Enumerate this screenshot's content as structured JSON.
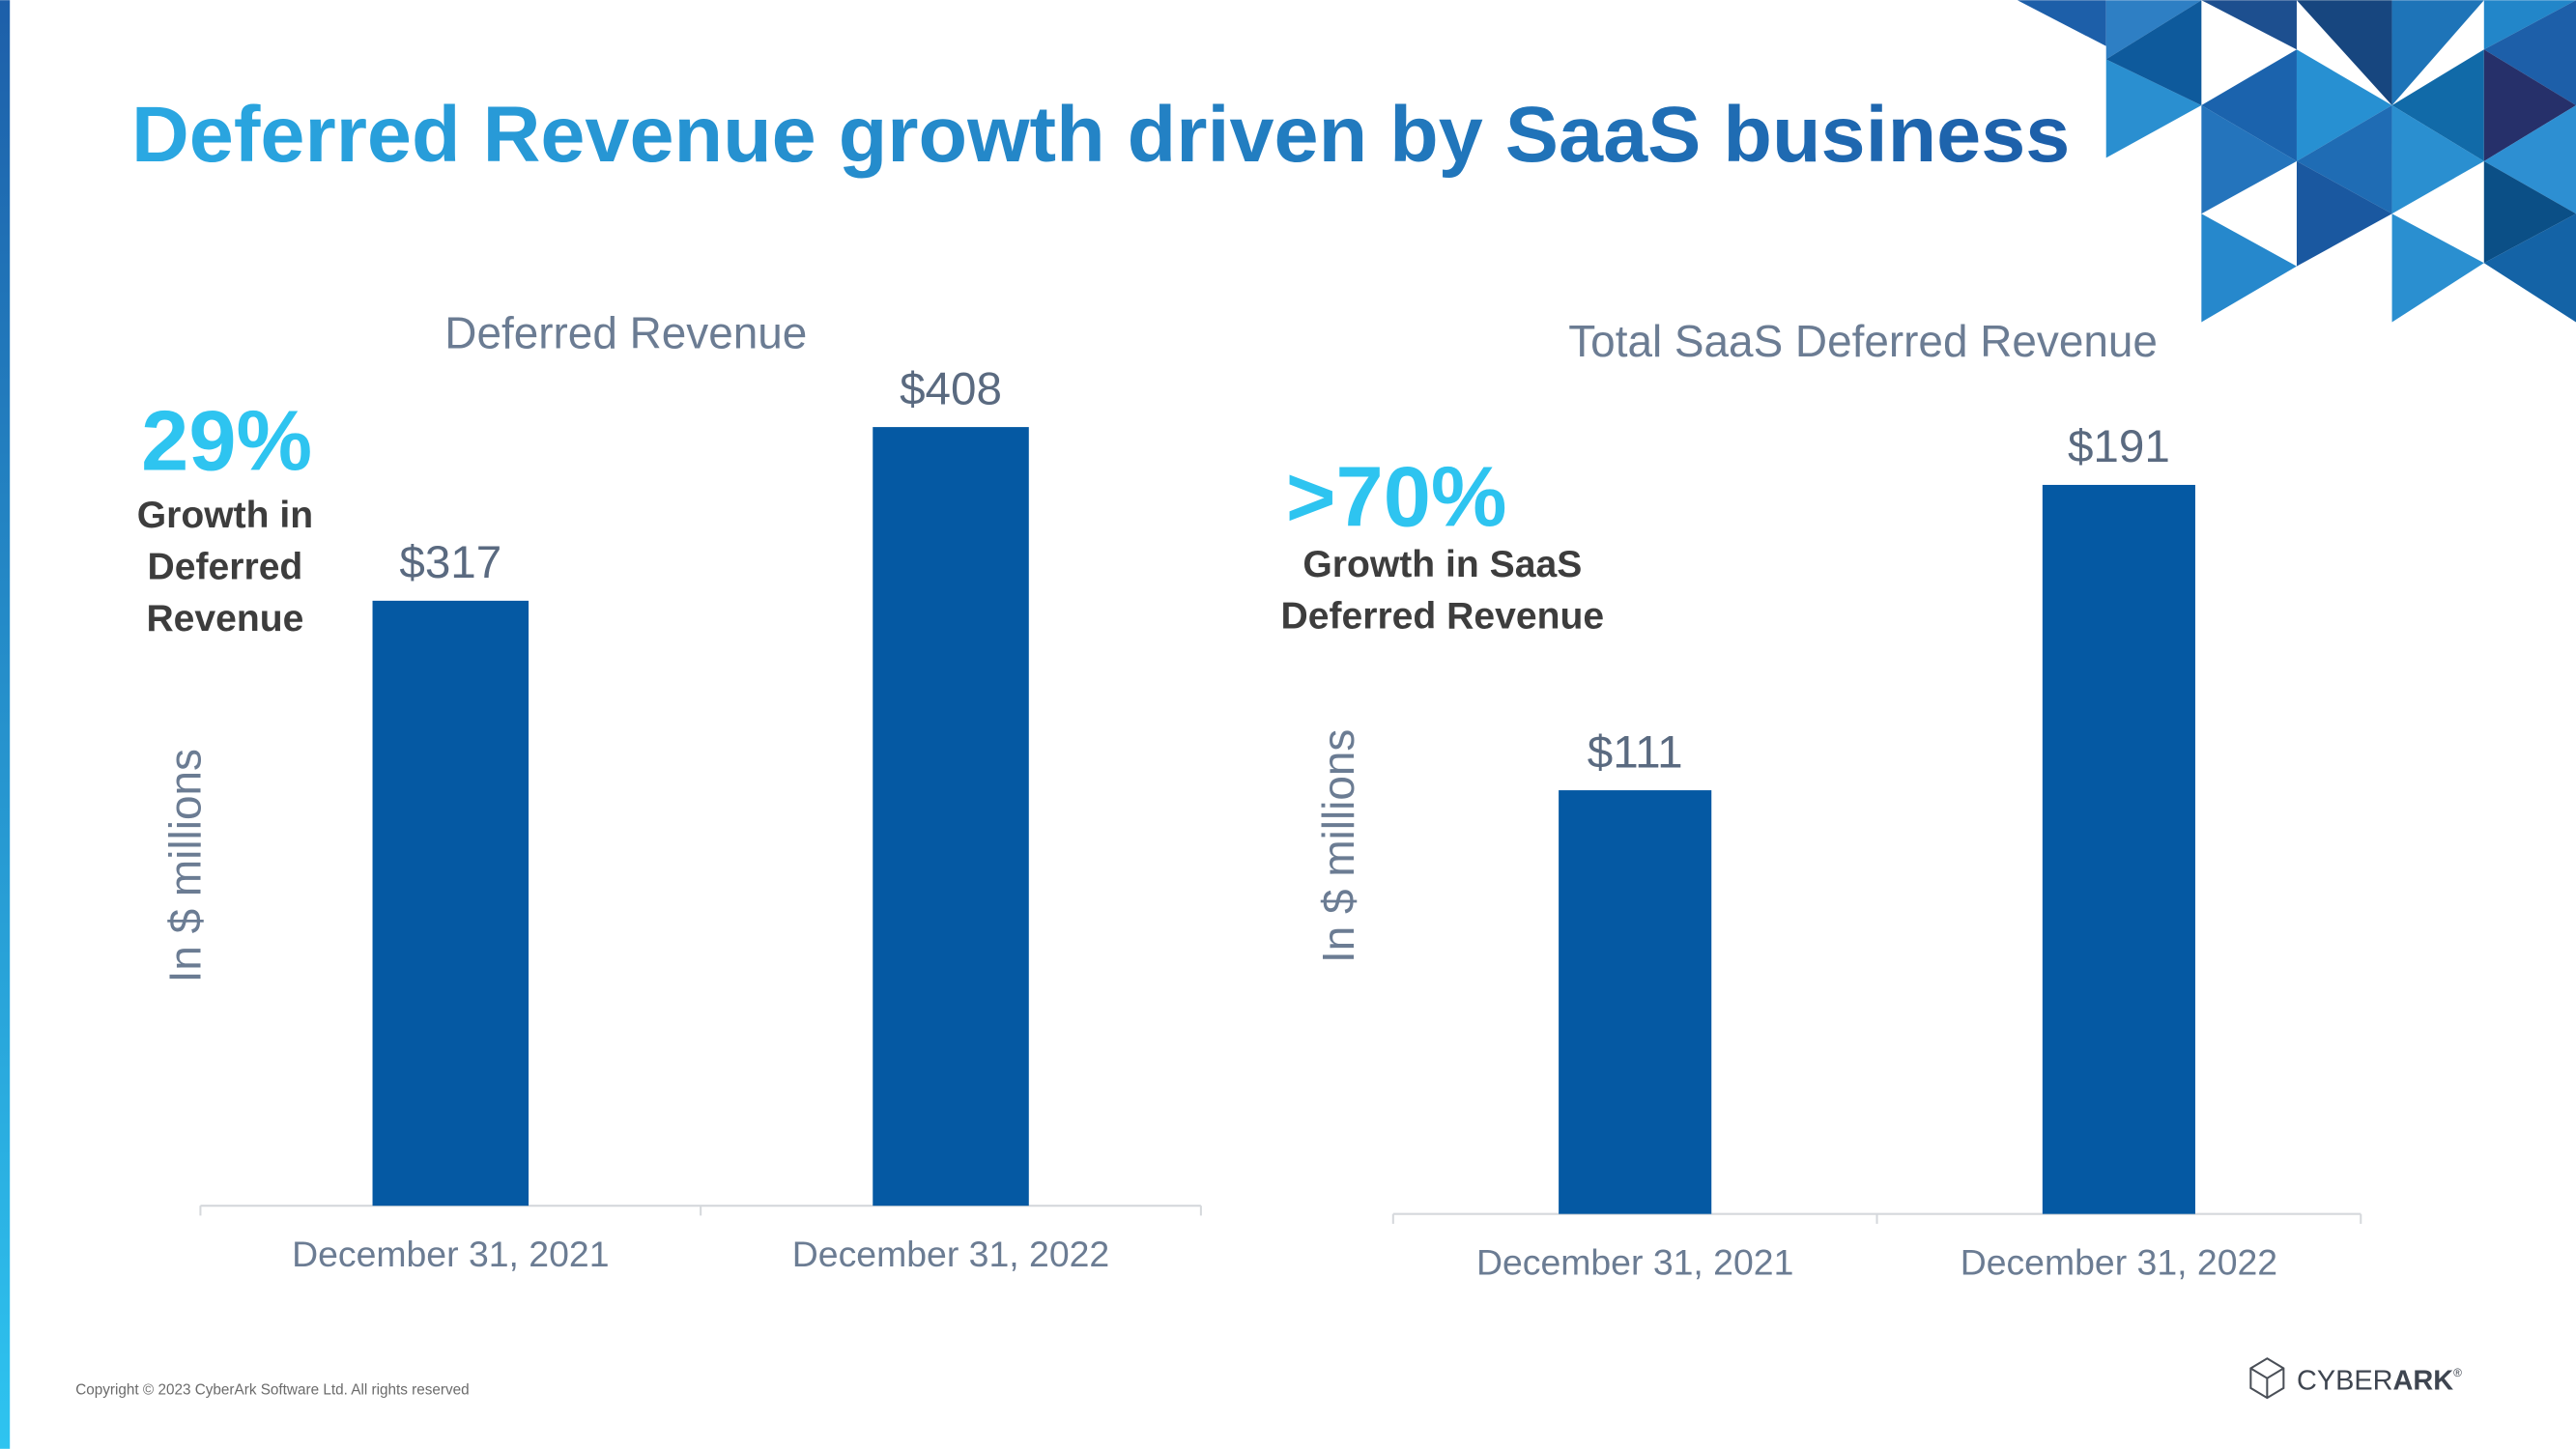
{
  "header": {
    "title": "Deferred Revenue growth driven by SaaS business"
  },
  "chart_data": [
    {
      "type": "bar",
      "title": "Deferred Revenue",
      "categories": [
        "December 31, 2021",
        "December 31, 2022"
      ],
      "values": [
        317,
        408
      ],
      "value_labels": [
        "$317",
        "$408"
      ],
      "color": "#0559a3",
      "ylim": [
        0,
        500
      ],
      "y_label": "In $ millions",
      "callout": "29%",
      "callout_lines": [
        "Growth in",
        "Deferred",
        "Revenue"
      ]
    },
    {
      "type": "bar",
      "title": "Total SaaS Deferred Revenue",
      "categories": [
        "December 31, 2021",
        "December 31, 2022"
      ],
      "values": [
        111,
        191
      ],
      "value_labels": [
        "$111",
        "$191"
      ],
      "color": "#0559a3",
      "ylim": [
        0,
        250
      ],
      "y_label": "In $ millions",
      "callout": ">70%",
      "callout_lines": [
        "Growth in SaaS",
        "Deferred Revenue"
      ]
    }
  ],
  "footer": {
    "copyright": "Copyright © 2023 CyberArk Software Ltd. All rights reserved",
    "logo": [
      "CYBER",
      "ARK",
      "®"
    ]
  }
}
